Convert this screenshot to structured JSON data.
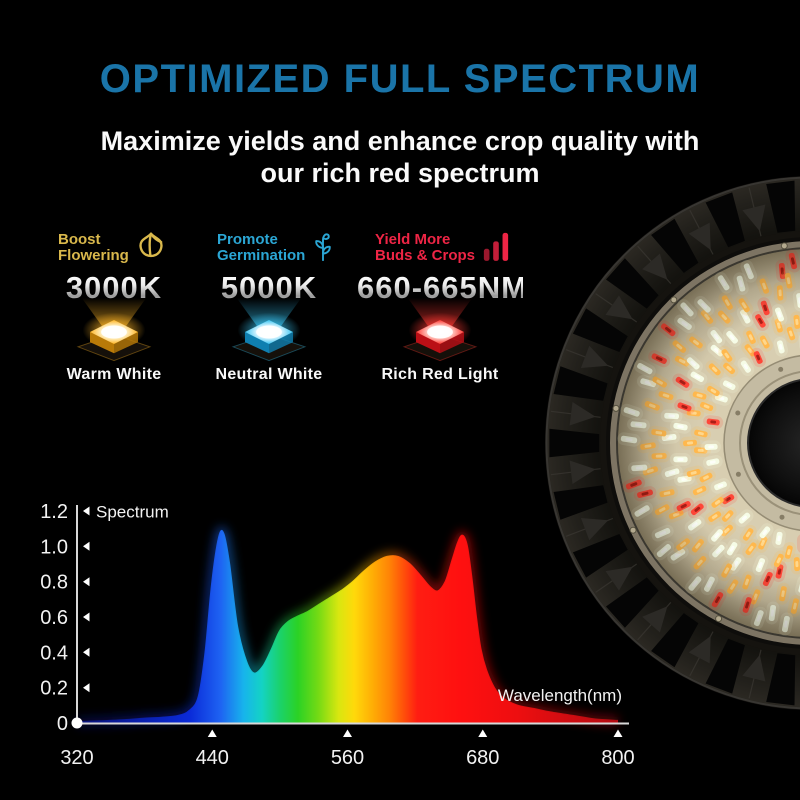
{
  "page": {
    "background": "#000000"
  },
  "header": {
    "title": "OPTIMIZED FULL SPECTRUM",
    "title_color": "#1a74a8",
    "subtitle_line1": "Maximize yields and enhance crop quality with",
    "subtitle_line2": "our rich red spectrum"
  },
  "features": [
    {
      "heading_line1": "Boost",
      "heading_line2": "Flowering",
      "icon": "tulip-icon",
      "accent": "#d9b84c",
      "value": "3000K",
      "label": "Warm White",
      "chip": {
        "bright": "#fff3cc",
        "main": "#ffb525",
        "dark": "#b97a08"
      }
    },
    {
      "heading_line1": "Promote",
      "heading_line2": "Germination",
      "icon": "sprout-icon",
      "accent": "#2ba6d4",
      "value": "5000K",
      "label": "Neutral White",
      "chip": {
        "bright": "#dff6ff",
        "main": "#38c4f2",
        "dark": "#0f7fb0"
      }
    },
    {
      "heading_line1": "Yield More",
      "heading_line2": "Buds & Crops",
      "icon": "bars-icon",
      "accent": "#ee2545",
      "value": "660-665NM",
      "label": "Rich Red Light",
      "chip": {
        "bright": "#ffd0c8",
        "main": "#ff3832",
        "dark": "#bb0f16"
      }
    }
  ],
  "fixture": {
    "description": "UFO LED grow light viewed from below, partially cropped at right edge",
    "led_colors": {
      "white": "#f6fce6",
      "warm": "#ffb84d",
      "red": "#ff4638"
    },
    "board_color": "#d9cfb2",
    "housing_color": "#23211c"
  },
  "chart_data": {
    "type": "area",
    "title": "",
    "y_axis_label": "Spectrum",
    "x_axis_label": "Wavelength(nm)",
    "xlim": [
      320,
      800
    ],
    "ylim": [
      0,
      1.2
    ],
    "grid": false,
    "axis_color": "#d8d8d8",
    "label_color": "#f2f2f2",
    "x_ticks": [
      320,
      440,
      560,
      680,
      800
    ],
    "y_ticks": [
      {
        "v": 0,
        "label": "0"
      },
      {
        "v": 0.2,
        "label": "0.2"
      },
      {
        "v": 0.4,
        "label": "0.4"
      },
      {
        "v": 0.6,
        "label": "0.6"
      },
      {
        "v": 0.8,
        "label": "0.8"
      },
      {
        "v": 1.0,
        "label": "1.0"
      },
      {
        "v": 1.2,
        "label": "1.2"
      }
    ],
    "series": [
      {
        "name": "Spectrum",
        "x": [
          320,
          340,
          360,
          380,
          395,
          410,
          420,
          428,
          434,
          440,
          446,
          450,
          455,
          462,
          470,
          477,
          485,
          493,
          500,
          507,
          515,
          525,
          535,
          545,
          555,
          565,
          575,
          585,
          595,
          605,
          615,
          625,
          633,
          640,
          647,
          653,
          658,
          662,
          666,
          670,
          674,
          678,
          683,
          690,
          698,
          710,
          725,
          740,
          760,
          780,
          800
        ],
        "y": [
          0.005,
          0.01,
          0.015,
          0.025,
          0.03,
          0.04,
          0.07,
          0.15,
          0.4,
          0.8,
          1.05,
          1.07,
          0.9,
          0.55,
          0.35,
          0.28,
          0.32,
          0.42,
          0.52,
          0.57,
          0.6,
          0.63,
          0.67,
          0.71,
          0.75,
          0.8,
          0.86,
          0.91,
          0.94,
          0.94,
          0.9,
          0.83,
          0.77,
          0.745,
          0.8,
          0.92,
          1.02,
          1.06,
          1.0,
          0.82,
          0.6,
          0.42,
          0.3,
          0.2,
          0.14,
          0.1,
          0.08,
          0.06,
          0.04,
          0.02,
          0.012
        ]
      }
    ],
    "fill_gradient": [
      {
        "wl": 320,
        "color": "#091277"
      },
      {
        "wl": 420,
        "color": "#0a2ad8"
      },
      {
        "wl": 447,
        "color": "#1e62f2"
      },
      {
        "wl": 468,
        "color": "#17b4ec"
      },
      {
        "wl": 484,
        "color": "#14d3c4"
      },
      {
        "wl": 500,
        "color": "#1bd26b"
      },
      {
        "wl": 516,
        "color": "#2bd225"
      },
      {
        "wl": 534,
        "color": "#74da14"
      },
      {
        "wl": 552,
        "color": "#d8e710"
      },
      {
        "wl": 566,
        "color": "#ffd90a"
      },
      {
        "wl": 582,
        "color": "#ffae05"
      },
      {
        "wl": 597,
        "color": "#ff8406"
      },
      {
        "wl": 610,
        "color": "#ff4f0a"
      },
      {
        "wl": 622,
        "color": "#ff1d12"
      },
      {
        "wl": 660,
        "color": "#ff1010"
      },
      {
        "wl": 710,
        "color": "#ee0e10"
      },
      {
        "wl": 800,
        "color": "#b40b12"
      }
    ]
  }
}
